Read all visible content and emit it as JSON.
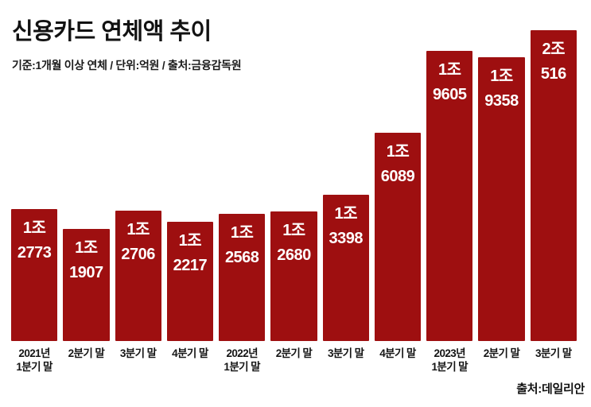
{
  "chart_data": {
    "type": "bar",
    "title": "신용카드 연체액 추이",
    "subtitle": "기준:1개월 이상 연체 / 단위:억원 / 출처:금융감독원",
    "source": "출처:데일리안",
    "unit": "억원",
    "categories": [
      "2021년 1분기 말",
      "2분기 말",
      "3분기 말",
      "4분기 말",
      "2022년 1분기 말",
      "2분기 말",
      "3분기 말",
      "4분기 말",
      "2023년 1분기 말",
      "2분기 말",
      "3분기 말"
    ],
    "category_lines": [
      [
        "2021년",
        "1분기 말"
      ],
      [
        "2분기 말"
      ],
      [
        "3분기 말"
      ],
      [
        "4분기 말"
      ],
      [
        "2022년",
        "1분기 말"
      ],
      [
        "2분기 말"
      ],
      [
        "3분기 말"
      ],
      [
        "4분기 말"
      ],
      [
        "2023년",
        "1분기 말"
      ],
      [
        "2분기 말"
      ],
      [
        "3분기 말"
      ]
    ],
    "values": [
      12773,
      11907,
      12706,
      12217,
      12568,
      12680,
      13398,
      16089,
      19605,
      19358,
      20516
    ],
    "bar_value_labels": [
      [
        "1조",
        "2773"
      ],
      [
        "1조",
        "1907"
      ],
      [
        "1조",
        "2706"
      ],
      [
        "1조",
        "2217"
      ],
      [
        "1조",
        "2568"
      ],
      [
        "1조",
        "2680"
      ],
      [
        "1조",
        "3398"
      ],
      [
        "1조",
        "6089"
      ],
      [
        "1조",
        "9605"
      ],
      [
        "1조",
        "9358"
      ],
      [
        "2조",
        "516"
      ]
    ],
    "xlabel": "",
    "ylabel": "",
    "grid": false,
    "legend_position": "none",
    "baseline_note": "bars not zero-based; implied value axis starts below minimum value",
    "colors": {
      "bar": "#9e0f10",
      "bar_value_text": "#ffffff",
      "title_text": "#121212",
      "axis_label_text": "#151515",
      "background": "#ffffff"
    }
  }
}
